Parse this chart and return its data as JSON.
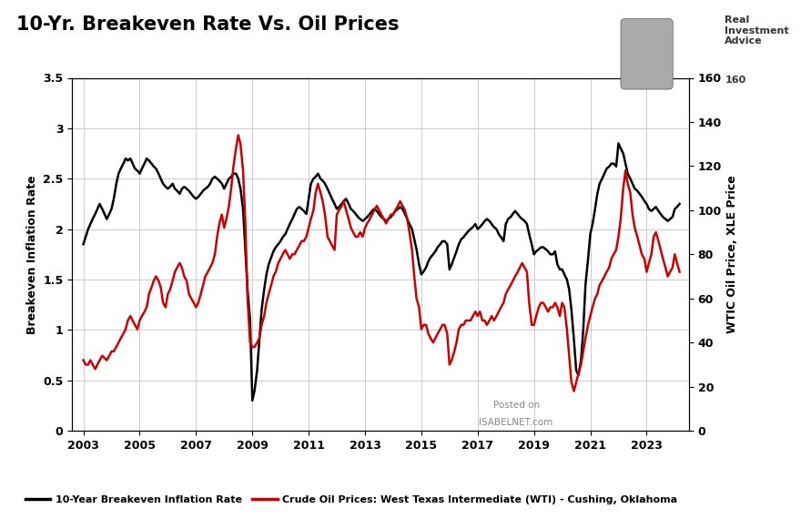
{
  "title": "10-Yr. Breakeven Rate Vs. Oil Prices",
  "ylabel_left": "Breakeven Inflation Rate",
  "ylabel_right": "WTIC Oil Price, XLE Price",
  "legend_black": "10-Year Breakeven Inflation Rate",
  "legend_red": "Crude Oil Prices: West Texas Intermediate (WTI) - Cushing, Oklahoma",
  "ylim_left": [
    0,
    3.5
  ],
  "ylim_right": [
    0,
    160
  ],
  "yticks_left": [
    0,
    0.5,
    1,
    1.5,
    2,
    2.5,
    3,
    3.5
  ],
  "yticks_right": [
    0,
    20,
    40,
    60,
    80,
    100,
    120,
    140,
    160
  ],
  "xticks": [
    2003,
    2005,
    2007,
    2009,
    2011,
    2013,
    2015,
    2017,
    2019,
    2021,
    2023
  ],
  "background_color": "#ffffff",
  "grid_color": "#cccccc",
  "line_black_color": "#000000",
  "line_red_color": "#cc0000",
  "watermark_line1": "Posted on",
  "watermark_line2": "ISABELNET.com",
  "dates_breakeven": [
    2003.0,
    2003.08,
    2003.17,
    2003.25,
    2003.33,
    2003.42,
    2003.5,
    2003.58,
    2003.67,
    2003.75,
    2003.83,
    2003.92,
    2004.0,
    2004.08,
    2004.17,
    2004.25,
    2004.33,
    2004.42,
    2004.5,
    2004.58,
    2004.67,
    2004.75,
    2004.83,
    2004.92,
    2005.0,
    2005.08,
    2005.17,
    2005.25,
    2005.33,
    2005.42,
    2005.5,
    2005.58,
    2005.67,
    2005.75,
    2005.83,
    2005.92,
    2006.0,
    2006.08,
    2006.17,
    2006.25,
    2006.33,
    2006.42,
    2006.5,
    2006.58,
    2006.67,
    2006.75,
    2006.83,
    2006.92,
    2007.0,
    2007.08,
    2007.17,
    2007.25,
    2007.33,
    2007.42,
    2007.5,
    2007.58,
    2007.67,
    2007.75,
    2007.83,
    2007.92,
    2008.0,
    2008.08,
    2008.17,
    2008.25,
    2008.33,
    2008.42,
    2008.5,
    2008.58,
    2008.67,
    2008.75,
    2008.83,
    2008.92,
    2009.0,
    2009.08,
    2009.17,
    2009.25,
    2009.33,
    2009.42,
    2009.5,
    2009.58,
    2009.67,
    2009.75,
    2009.83,
    2009.92,
    2010.0,
    2010.08,
    2010.17,
    2010.25,
    2010.33,
    2010.42,
    2010.5,
    2010.58,
    2010.67,
    2010.75,
    2010.83,
    2010.92,
    2011.0,
    2011.08,
    2011.17,
    2011.25,
    2011.33,
    2011.42,
    2011.5,
    2011.58,
    2011.67,
    2011.75,
    2011.83,
    2011.92,
    2012.0,
    2012.08,
    2012.17,
    2012.25,
    2012.33,
    2012.42,
    2012.5,
    2012.58,
    2012.67,
    2012.75,
    2012.83,
    2012.92,
    2013.0,
    2013.08,
    2013.17,
    2013.25,
    2013.33,
    2013.42,
    2013.5,
    2013.58,
    2013.67,
    2013.75,
    2013.83,
    2013.92,
    2014.0,
    2014.08,
    2014.17,
    2014.25,
    2014.33,
    2014.42,
    2014.5,
    2014.58,
    2014.67,
    2014.75,
    2014.83,
    2014.92,
    2015.0,
    2015.08,
    2015.17,
    2015.25,
    2015.33,
    2015.42,
    2015.5,
    2015.58,
    2015.67,
    2015.75,
    2015.83,
    2015.92,
    2016.0,
    2016.08,
    2016.17,
    2016.25,
    2016.33,
    2016.42,
    2016.5,
    2016.58,
    2016.67,
    2016.75,
    2016.83,
    2016.92,
    2017.0,
    2017.08,
    2017.17,
    2017.25,
    2017.33,
    2017.42,
    2017.5,
    2017.58,
    2017.67,
    2017.75,
    2017.83,
    2017.92,
    2018.0,
    2018.08,
    2018.17,
    2018.25,
    2018.33,
    2018.42,
    2018.5,
    2018.58,
    2018.67,
    2018.75,
    2018.83,
    2018.92,
    2019.0,
    2019.08,
    2019.17,
    2019.25,
    2019.33,
    2019.42,
    2019.5,
    2019.58,
    2019.67,
    2019.75,
    2019.83,
    2019.92,
    2020.0,
    2020.08,
    2020.17,
    2020.25,
    2020.33,
    2020.42,
    2020.5,
    2020.58,
    2020.67,
    2020.75,
    2020.83,
    2020.92,
    2021.0,
    2021.08,
    2021.17,
    2021.25,
    2021.33,
    2021.42,
    2021.5,
    2021.58,
    2021.67,
    2021.75,
    2021.83,
    2021.92,
    2022.0,
    2022.08,
    2022.17,
    2022.25,
    2022.33,
    2022.42,
    2022.5,
    2022.58,
    2022.67,
    2022.75,
    2022.83,
    2022.92,
    2023.0,
    2023.08,
    2023.17,
    2023.25,
    2023.33,
    2023.42,
    2023.5,
    2023.58,
    2023.67,
    2023.75,
    2023.83,
    2023.92,
    2024.0,
    2024.08,
    2024.17
  ],
  "values_breakeven": [
    1.85,
    1.92,
    2.0,
    2.05,
    2.1,
    2.15,
    2.2,
    2.25,
    2.2,
    2.15,
    2.1,
    2.15,
    2.2,
    2.3,
    2.45,
    2.55,
    2.6,
    2.65,
    2.7,
    2.68,
    2.7,
    2.65,
    2.6,
    2.58,
    2.55,
    2.6,
    2.65,
    2.7,
    2.68,
    2.65,
    2.62,
    2.6,
    2.55,
    2.5,
    2.45,
    2.42,
    2.4,
    2.42,
    2.45,
    2.4,
    2.38,
    2.35,
    2.4,
    2.42,
    2.4,
    2.38,
    2.35,
    2.32,
    2.3,
    2.32,
    2.35,
    2.38,
    2.4,
    2.42,
    2.45,
    2.5,
    2.52,
    2.5,
    2.48,
    2.45,
    2.4,
    2.45,
    2.5,
    2.52,
    2.55,
    2.55,
    2.5,
    2.4,
    2.2,
    1.8,
    1.4,
    1.1,
    0.3,
    0.4,
    0.6,
    0.9,
    1.2,
    1.4,
    1.55,
    1.65,
    1.72,
    1.78,
    1.82,
    1.85,
    1.88,
    1.92,
    1.95,
    2.0,
    2.05,
    2.1,
    2.15,
    2.2,
    2.22,
    2.2,
    2.18,
    2.15,
    2.3,
    2.45,
    2.5,
    2.52,
    2.55,
    2.5,
    2.48,
    2.45,
    2.4,
    2.35,
    2.3,
    2.25,
    2.2,
    2.22,
    2.25,
    2.28,
    2.3,
    2.25,
    2.2,
    2.18,
    2.15,
    2.12,
    2.1,
    2.08,
    2.1,
    2.12,
    2.15,
    2.18,
    2.2,
    2.18,
    2.15,
    2.12,
    2.1,
    2.08,
    2.1,
    2.12,
    2.15,
    2.18,
    2.2,
    2.22,
    2.2,
    2.15,
    2.1,
    2.05,
    2.0,
    1.9,
    1.8,
    1.65,
    1.55,
    1.58,
    1.62,
    1.68,
    1.72,
    1.75,
    1.78,
    1.82,
    1.85,
    1.88,
    1.88,
    1.85,
    1.6,
    1.65,
    1.72,
    1.78,
    1.85,
    1.9,
    1.92,
    1.95,
    1.98,
    2.0,
    2.02,
    2.05,
    2.0,
    2.02,
    2.05,
    2.08,
    2.1,
    2.08,
    2.05,
    2.02,
    2.0,
    1.95,
    1.92,
    1.88,
    2.05,
    2.1,
    2.12,
    2.15,
    2.18,
    2.15,
    2.12,
    2.1,
    2.08,
    2.05,
    1.95,
    1.85,
    1.75,
    1.78,
    1.8,
    1.82,
    1.82,
    1.8,
    1.78,
    1.75,
    1.75,
    1.78,
    1.65,
    1.6,
    1.6,
    1.55,
    1.5,
    1.4,
    1.2,
    0.9,
    0.6,
    0.55,
    0.7,
    1.0,
    1.45,
    1.7,
    1.95,
    2.05,
    2.2,
    2.35,
    2.45,
    2.5,
    2.55,
    2.6,
    2.62,
    2.65,
    2.65,
    2.62,
    2.85,
    2.8,
    2.75,
    2.65,
    2.55,
    2.5,
    2.45,
    2.4,
    2.38,
    2.35,
    2.32,
    2.28,
    2.25,
    2.2,
    2.18,
    2.2,
    2.22,
    2.18,
    2.15,
    2.12,
    2.1,
    2.08,
    2.1,
    2.12,
    2.2,
    2.22,
    2.25
  ],
  "dates_oil": [
    2003.0,
    2003.08,
    2003.17,
    2003.25,
    2003.33,
    2003.42,
    2003.5,
    2003.58,
    2003.67,
    2003.75,
    2003.83,
    2003.92,
    2004.0,
    2004.08,
    2004.17,
    2004.25,
    2004.33,
    2004.42,
    2004.5,
    2004.58,
    2004.67,
    2004.75,
    2004.83,
    2004.92,
    2005.0,
    2005.08,
    2005.17,
    2005.25,
    2005.33,
    2005.42,
    2005.5,
    2005.58,
    2005.67,
    2005.75,
    2005.83,
    2005.92,
    2006.0,
    2006.08,
    2006.17,
    2006.25,
    2006.33,
    2006.42,
    2006.5,
    2006.58,
    2006.67,
    2006.75,
    2006.83,
    2006.92,
    2007.0,
    2007.08,
    2007.17,
    2007.25,
    2007.33,
    2007.42,
    2007.5,
    2007.58,
    2007.67,
    2007.75,
    2007.83,
    2007.92,
    2008.0,
    2008.08,
    2008.17,
    2008.25,
    2008.33,
    2008.42,
    2008.5,
    2008.58,
    2008.67,
    2008.75,
    2008.83,
    2008.92,
    2009.0,
    2009.08,
    2009.17,
    2009.25,
    2009.33,
    2009.42,
    2009.5,
    2009.58,
    2009.67,
    2009.75,
    2009.83,
    2009.92,
    2010.0,
    2010.08,
    2010.17,
    2010.25,
    2010.33,
    2010.42,
    2010.5,
    2010.58,
    2010.67,
    2010.75,
    2010.83,
    2010.92,
    2011.0,
    2011.08,
    2011.17,
    2011.25,
    2011.33,
    2011.42,
    2011.5,
    2011.58,
    2011.67,
    2011.75,
    2011.83,
    2011.92,
    2012.0,
    2012.08,
    2012.17,
    2012.25,
    2012.33,
    2012.42,
    2012.5,
    2012.58,
    2012.67,
    2012.75,
    2012.83,
    2012.92,
    2013.0,
    2013.08,
    2013.17,
    2013.25,
    2013.33,
    2013.42,
    2013.5,
    2013.58,
    2013.67,
    2013.75,
    2013.83,
    2013.92,
    2014.0,
    2014.08,
    2014.17,
    2014.25,
    2014.33,
    2014.42,
    2014.5,
    2014.58,
    2014.67,
    2014.75,
    2014.83,
    2014.92,
    2015.0,
    2015.08,
    2015.17,
    2015.25,
    2015.33,
    2015.42,
    2015.5,
    2015.58,
    2015.67,
    2015.75,
    2015.83,
    2015.92,
    2016.0,
    2016.08,
    2016.17,
    2016.25,
    2016.33,
    2016.42,
    2016.5,
    2016.58,
    2016.67,
    2016.75,
    2016.83,
    2016.92,
    2017.0,
    2017.08,
    2017.17,
    2017.25,
    2017.33,
    2017.42,
    2017.5,
    2017.58,
    2017.67,
    2017.75,
    2017.83,
    2017.92,
    2018.0,
    2018.08,
    2018.17,
    2018.25,
    2018.33,
    2018.42,
    2018.5,
    2018.58,
    2018.67,
    2018.75,
    2018.83,
    2018.92,
    2019.0,
    2019.08,
    2019.17,
    2019.25,
    2019.33,
    2019.42,
    2019.5,
    2019.58,
    2019.67,
    2019.75,
    2019.83,
    2019.92,
    2020.0,
    2020.08,
    2020.17,
    2020.25,
    2020.33,
    2020.42,
    2020.5,
    2020.58,
    2020.67,
    2020.75,
    2020.83,
    2020.92,
    2021.0,
    2021.08,
    2021.17,
    2021.25,
    2021.33,
    2021.42,
    2021.5,
    2021.58,
    2021.67,
    2021.75,
    2021.83,
    2021.92,
    2022.0,
    2022.08,
    2022.17,
    2022.25,
    2022.33,
    2022.42,
    2022.5,
    2022.58,
    2022.67,
    2022.75,
    2022.83,
    2022.92,
    2023.0,
    2023.08,
    2023.17,
    2023.25,
    2023.33,
    2023.42,
    2023.5,
    2023.58,
    2023.67,
    2023.75,
    2023.83,
    2023.92,
    2024.0,
    2024.08,
    2024.17
  ],
  "values_oil": [
    32,
    30,
    30,
    32,
    30,
    28,
    30,
    32,
    34,
    33,
    32,
    34,
    36,
    36,
    38,
    40,
    42,
    44,
    46,
    50,
    52,
    50,
    48,
    46,
    50,
    52,
    54,
    56,
    62,
    65,
    68,
    70,
    68,
    65,
    58,
    56,
    62,
    64,
    68,
    72,
    74,
    76,
    74,
    70,
    68,
    62,
    60,
    58,
    56,
    58,
    62,
    66,
    70,
    72,
    74,
    76,
    80,
    88,
    94,
    98,
    92,
    96,
    102,
    110,
    120,
    128,
    134,
    130,
    118,
    95,
    60,
    40,
    38,
    38,
    40,
    42,
    48,
    52,
    58,
    62,
    66,
    70,
    72,
    76,
    78,
    80,
    82,
    80,
    78,
    80,
    80,
    82,
    84,
    86,
    86,
    88,
    92,
    96,
    100,
    108,
    112,
    108,
    104,
    98,
    88,
    86,
    84,
    82,
    98,
    100,
    102,
    104,
    100,
    96,
    92,
    90,
    88,
    88,
    90,
    88,
    92,
    94,
    96,
    98,
    100,
    102,
    100,
    98,
    96,
    94,
    96,
    98,
    98,
    100,
    102,
    104,
    102,
    100,
    96,
    90,
    82,
    70,
    60,
    56,
    46,
    48,
    48,
    44,
    42,
    40,
    42,
    44,
    46,
    48,
    48,
    44,
    30,
    32,
    36,
    40,
    46,
    48,
    48,
    50,
    50,
    50,
    52,
    54,
    52,
    54,
    50,
    50,
    48,
    50,
    52,
    50,
    52,
    54,
    56,
    58,
    62,
    64,
    66,
    68,
    70,
    72,
    74,
    76,
    74,
    72,
    58,
    48,
    48,
    52,
    56,
    58,
    58,
    56,
    54,
    56,
    56,
    58,
    56,
    52,
    58,
    56,
    46,
    34,
    22,
    18,
    22,
    26,
    30,
    36,
    42,
    48,
    52,
    56,
    60,
    62,
    66,
    68,
    70,
    72,
    74,
    78,
    80,
    82,
    88,
    96,
    110,
    118,
    112,
    108,
    98,
    92,
    88,
    84,
    80,
    78,
    72,
    76,
    80,
    88,
    90,
    86,
    82,
    78,
    74,
    70,
    72,
    74,
    80,
    76,
    72
  ]
}
